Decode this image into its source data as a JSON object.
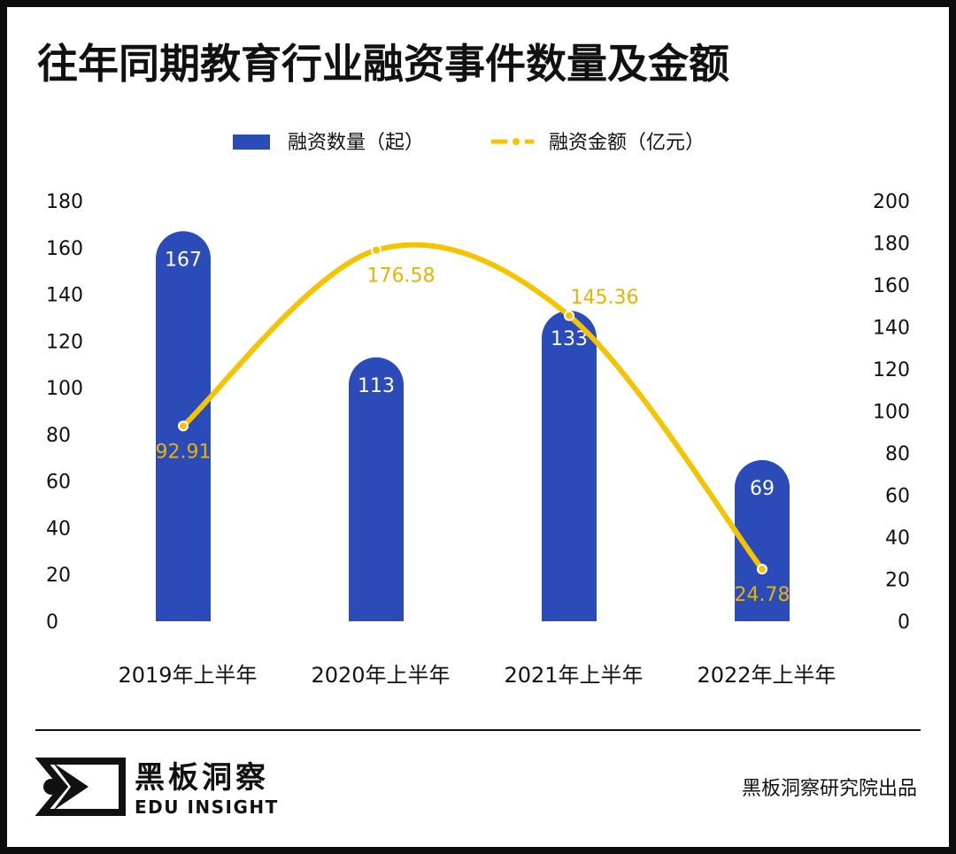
{
  "colors": {
    "bar": "#2a4bb8",
    "line": "#f5c400",
    "line_label": "#e8b400",
    "text": "#111111",
    "frame": "#0d0d0d",
    "bar_label": "#ffffff"
  },
  "chart_data": {
    "type": "bar",
    "title": "往年同期教育行业融资事件数量及金额",
    "categories": [
      "2019年上半年",
      "2020年上半年",
      "2021年上半年",
      "2022年上半年"
    ],
    "series": [
      {
        "name": "融资数量（起）",
        "type": "bar",
        "axis": "left",
        "values": [
          167,
          113,
          133,
          69
        ],
        "labels": [
          "167",
          "113",
          "133",
          "69"
        ]
      },
      {
        "name": "融资金额（亿元）",
        "type": "line",
        "axis": "right",
        "values": [
          92.91,
          176.58,
          145.36,
          24.78
        ],
        "labels": [
          "92.91",
          "176.58",
          "145.36",
          "24.78"
        ]
      }
    ],
    "y_left": {
      "min": 0,
      "max": 180,
      "ticks": [
        "0",
        "20",
        "40",
        "60",
        "80",
        "100",
        "120",
        "140",
        "160",
        "180"
      ]
    },
    "y_right": {
      "min": 0,
      "max": 200,
      "ticks": [
        "0",
        "20",
        "40",
        "60",
        "80",
        "100",
        "120",
        "140",
        "160",
        "180",
        "200"
      ]
    },
    "legend_position": "top-center",
    "grid": false
  },
  "footer": {
    "logo_cn": "黑板洞察",
    "logo_en": "EDU INSIGHT",
    "source": "黑板洞察研究院出品"
  }
}
